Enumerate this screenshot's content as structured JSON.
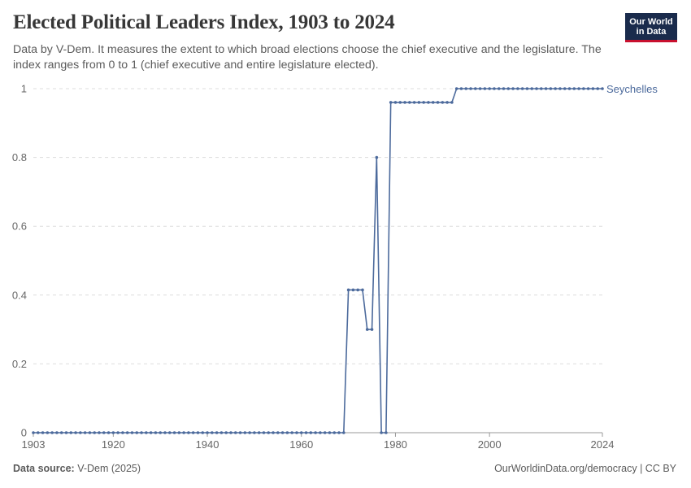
{
  "header": {
    "title": "Elected Political Leaders Index, 1903 to 2024",
    "subtitle": "Data by V-Dem. It measures the extent to which broad elections choose the chief executive and the legislature. The index ranges from 0 to 1 (chief executive and entire legislature elected).",
    "logo_line1": "Our World",
    "logo_line2": "in Data"
  },
  "footer": {
    "source_label": "Data source:",
    "source_value": "V-Dem (2025)",
    "credit": "OurWorldinData.org/democracy | CC BY"
  },
  "colors": {
    "series": "#4c6a9c",
    "grid": "#dddddd",
    "logo_bg": "#1a2b4c",
    "logo_accent": "#c8102e"
  },
  "chart_data": {
    "type": "line",
    "title": "Elected Political Leaders Index, 1903 to 2024",
    "xlabel": "",
    "ylabel": "",
    "xlim": [
      1903,
      2024
    ],
    "ylim": [
      0,
      1
    ],
    "x_ticks": [
      "1903",
      "1920",
      "1940",
      "1960",
      "1980",
      "2000",
      "2024"
    ],
    "y_ticks": [
      "0",
      "0.2",
      "0.4",
      "0.6",
      "0.8",
      "1"
    ],
    "grid": "horizontal dashed",
    "legend": "end-of-line label",
    "series": [
      {
        "name": "Seychelles",
        "segments": [
          {
            "x_start": 1903,
            "x_end": 1969,
            "value": 0
          },
          {
            "x_start": 1970,
            "x_end": 1973,
            "value": 0.415
          },
          {
            "x_start": 1974,
            "x_end": 1975,
            "value": 0.3
          },
          {
            "x_start": 1976,
            "x_end": 1976,
            "value": 0.8
          },
          {
            "x_start": 1977,
            "x_end": 1978,
            "value": 0
          },
          {
            "x_start": 1979,
            "x_end": 1992,
            "value": 0.96
          },
          {
            "x_start": 1993,
            "x_end": 2024,
            "value": 1
          }
        ]
      }
    ]
  }
}
